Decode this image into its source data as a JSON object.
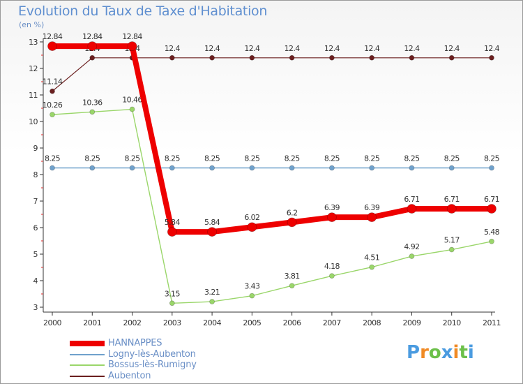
{
  "title": "Evolution du Taux de Taxe d'Habitation",
  "unit_label": "(en %)",
  "chart_data": {
    "type": "line",
    "x": [
      "2000",
      "2001",
      "2002",
      "2003",
      "2004",
      "2005",
      "2006",
      "2007",
      "2008",
      "2009",
      "2010",
      "2011"
    ],
    "ylim": [
      3,
      13
    ],
    "yticks": [
      3,
      4,
      5,
      6,
      7,
      8,
      9,
      10,
      11,
      12,
      13
    ],
    "grid": false,
    "legend_position": "bottom-left",
    "series": [
      {
        "name": "Aubenton",
        "color": "#6b1f1f",
        "width": 1.2,
        "marker_radius": 3.5,
        "values": [
          11.14,
          12.4,
          12.4,
          12.4,
          12.4,
          12.4,
          12.4,
          12.4,
          12.4,
          12.4,
          12.4,
          12.4
        ],
        "labels": [
          "11.14",
          "12.4",
          "12.4",
          "12.4",
          "12.4",
          "12.4",
          "12.4",
          "12.4",
          "12.4",
          "12.4",
          "12.4",
          "12.4"
        ]
      },
      {
        "name": "Logny-lès-Aubenton",
        "color": "#6fa1cc",
        "width": 1.4,
        "marker_radius": 3.5,
        "values": [
          8.25,
          8.25,
          8.25,
          8.25,
          8.25,
          8.25,
          8.25,
          8.25,
          8.25,
          8.25,
          8.25,
          8.25
        ],
        "labels": [
          "8.25",
          "8.25",
          "8.25",
          "8.25",
          "8.25",
          "8.25",
          "8.25",
          "8.25",
          "8.25",
          "8.25",
          "8.25",
          "8.25"
        ]
      },
      {
        "name": "Bossus-lès-Rumigny",
        "color": "#9ad66a",
        "width": 1.4,
        "marker_radius": 3.5,
        "values": [
          10.26,
          10.36,
          10.46,
          3.15,
          3.21,
          3.43,
          3.81,
          4.18,
          4.51,
          4.92,
          5.17,
          5.48
        ],
        "labels": [
          "10.26",
          "10.36",
          "10.46",
          "3.15",
          "3.21",
          "3.43",
          "3.81",
          "4.18",
          "4.51",
          "4.92",
          "5.17",
          "5.48"
        ]
      },
      {
        "name": "HANNAPPES",
        "color": "#ee0000",
        "width": 8,
        "marker_radius": 6.5,
        "values": [
          12.84,
          12.84,
          12.84,
          5.84,
          5.84,
          6.02,
          6.2,
          6.39,
          6.39,
          6.71,
          6.71,
          6.71
        ],
        "labels": [
          "12.84",
          "12.84",
          "12.84",
          "5.84",
          "5.84",
          "6.02",
          "6.2",
          "6.39",
          "6.39",
          "6.71",
          "6.71",
          "6.71"
        ]
      }
    ]
  },
  "legend": [
    {
      "name": "HANNAPPES",
      "color": "#ee0000",
      "thickness": 8
    },
    {
      "name": "Logny-lès-Aubenton",
      "color": "#6fa1cc",
      "thickness": 2
    },
    {
      "name": "Bossus-lès-Rumigny",
      "color": "#9ad66a",
      "thickness": 2
    },
    {
      "name": "Aubenton",
      "color": "#6b1f1f",
      "thickness": 2
    }
  ],
  "logo": {
    "letters": [
      "P",
      "r",
      "o",
      "x",
      "i",
      "t",
      "i"
    ],
    "colors": [
      "#4a9be0",
      "#f08a24",
      "#6cc04a",
      "#4a9be0",
      "#f08a24",
      "#6cc04a",
      "#4a9be0"
    ]
  }
}
